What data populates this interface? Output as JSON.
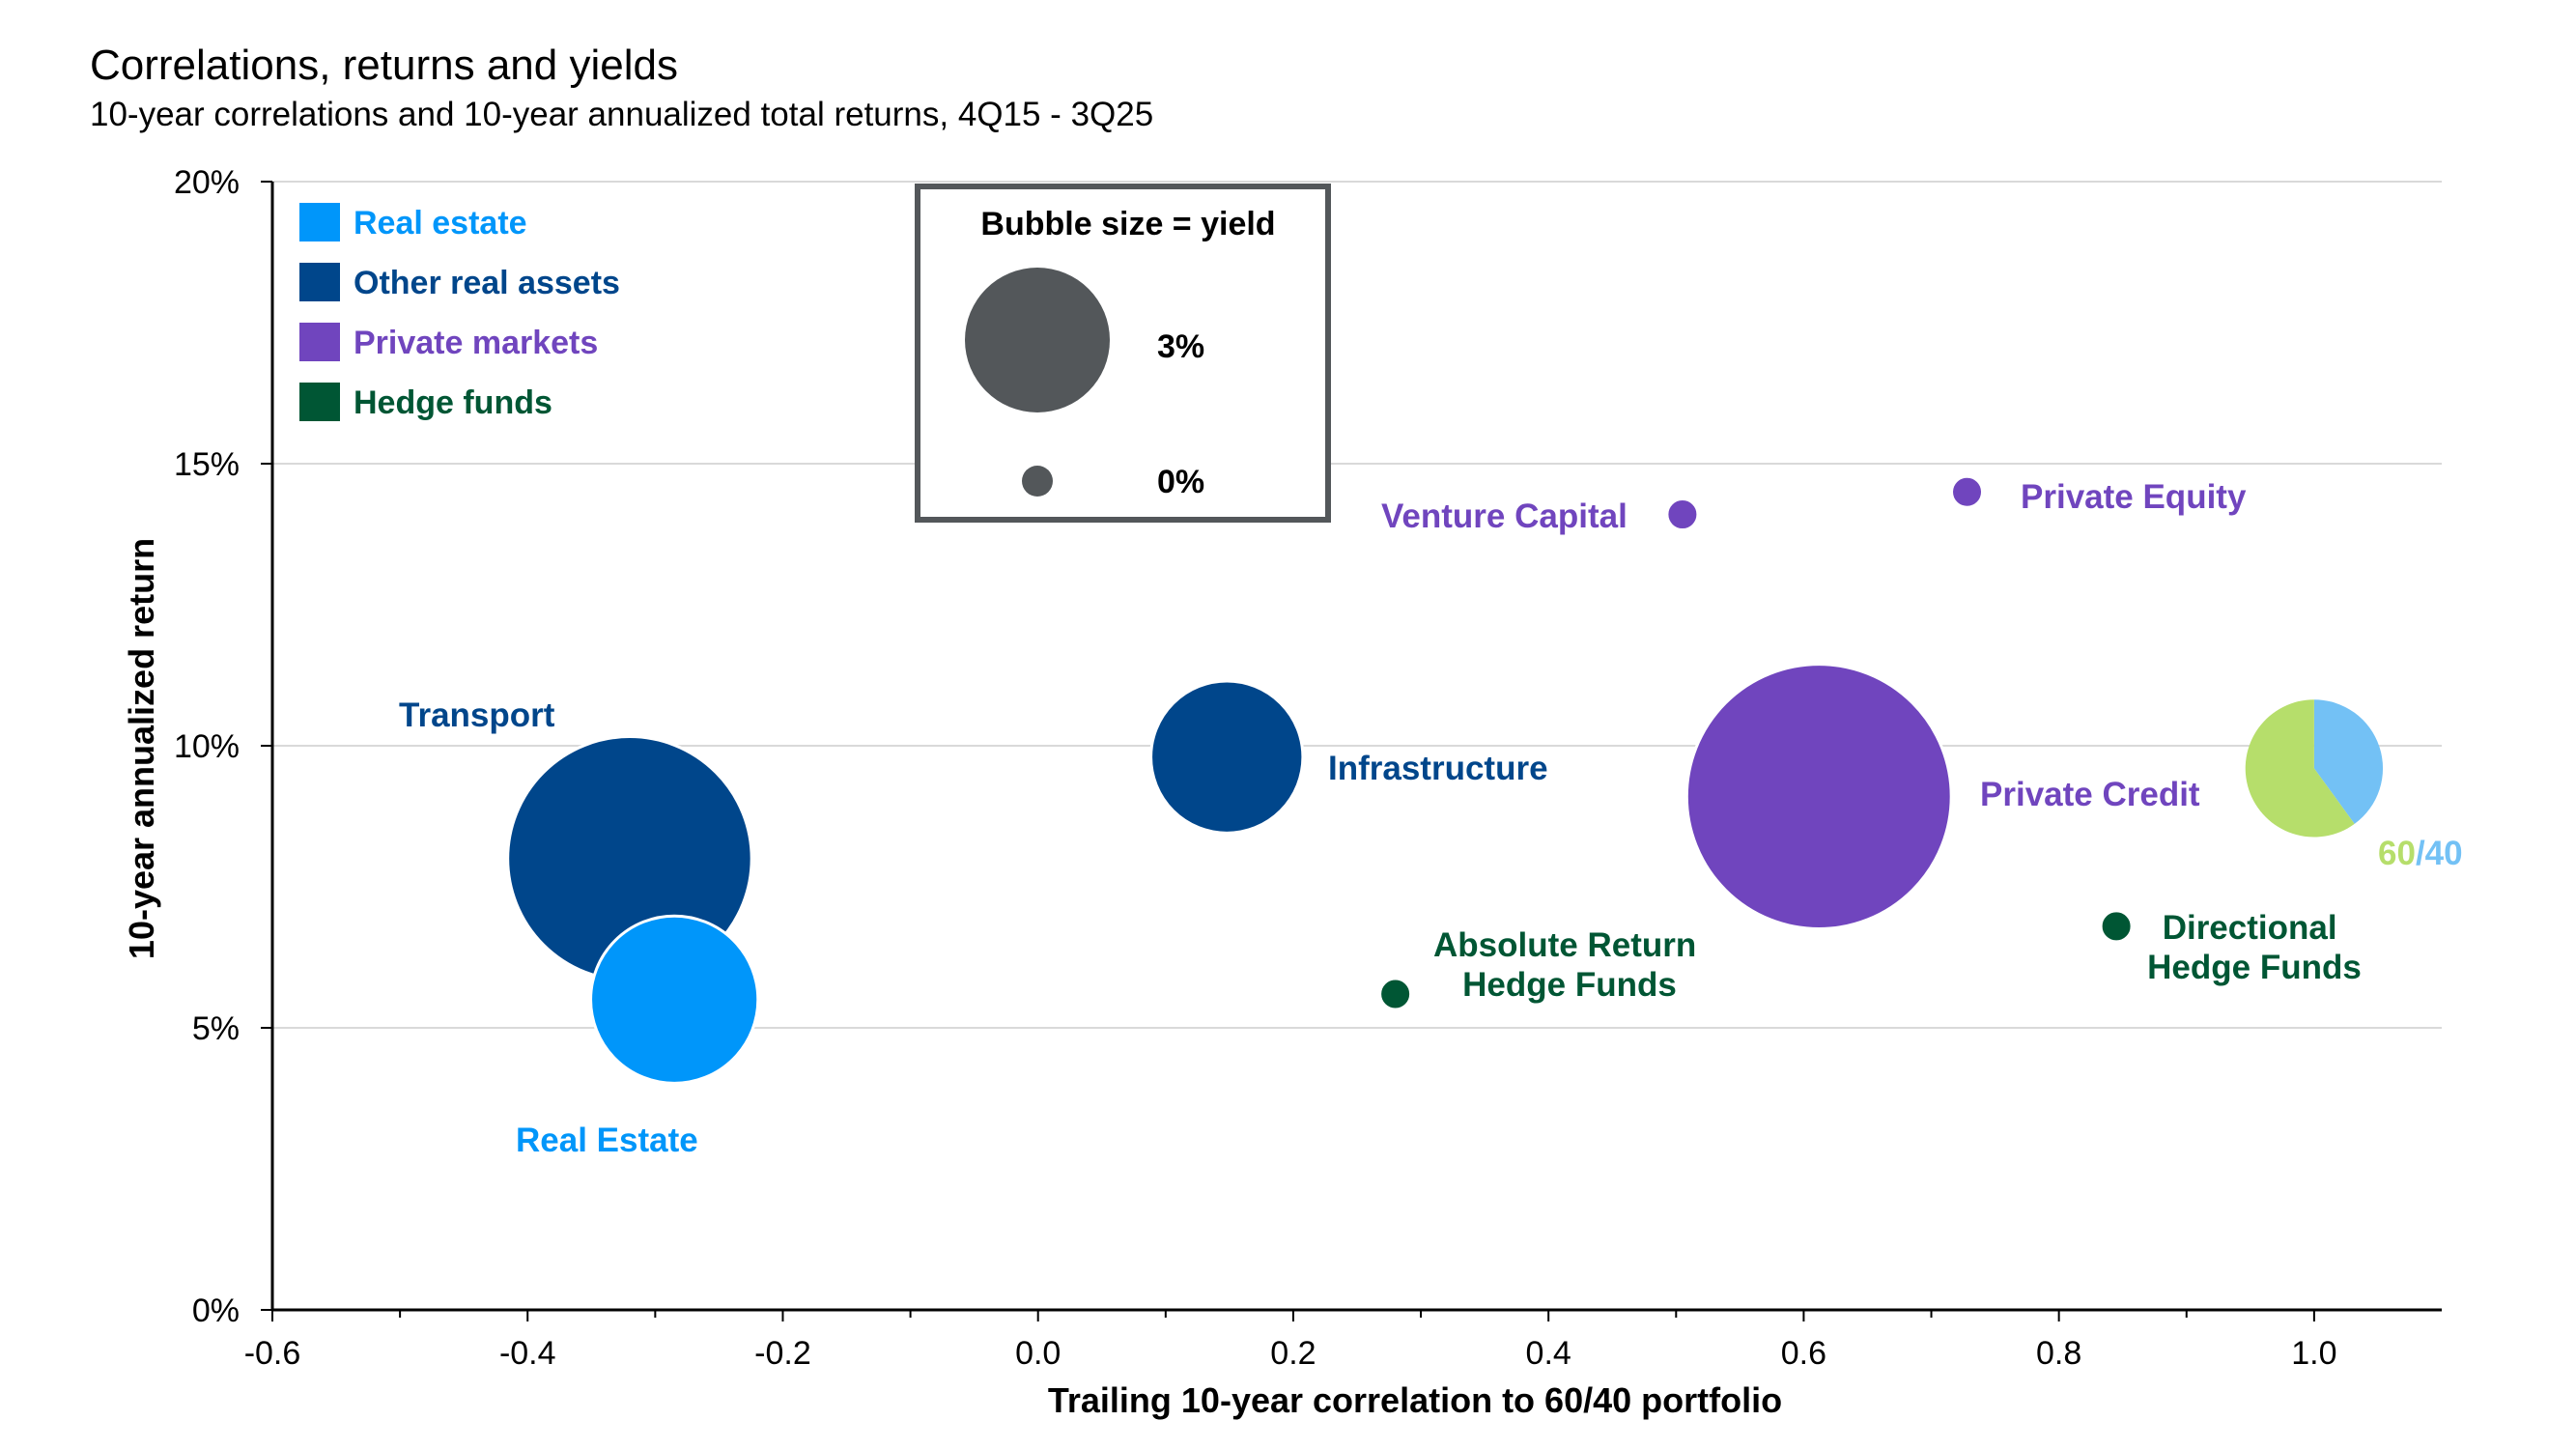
{
  "chart_data": {
    "type": "bubble",
    "title": "Correlations, returns and yields",
    "subtitle": "10-year correlations and 10-year annualized total returns, 4Q15 - 3Q25",
    "xlabel": "Trailing 10-year correlation to 60/40 portfolio",
    "ylabel": "10-year annualized return",
    "xlim": [
      -0.6,
      1.1
    ],
    "ylim": [
      0,
      20
    ],
    "x_ticks": [
      "-0.6",
      "-0.4",
      "-0.2",
      "0.0",
      "0.2",
      "0.4",
      "0.6",
      "0.8",
      "1.0"
    ],
    "x_tick_values": [
      -0.6,
      -0.4,
      -0.2,
      0.0,
      0.2,
      0.4,
      0.6,
      0.8,
      1.0
    ],
    "y_ticks": [
      "0%",
      "5%",
      "10%",
      "15%",
      "20%"
    ],
    "y_tick_values": [
      0,
      5,
      10,
      15,
      20
    ],
    "grid": "horizontal",
    "legend_position": "top-left",
    "legend": [
      {
        "label": "Real estate",
        "color": "#0096FA"
      },
      {
        "label": "Other real assets",
        "color": "#00468B"
      },
      {
        "label": "Private markets",
        "color": "#7045BE"
      },
      {
        "label": "Hedge funds",
        "color": "#005634"
      }
    ],
    "size_key": {
      "title": "Bubble size = yield",
      "entries": [
        {
          "label": "3%",
          "yield": 3
        },
        {
          "label": "0%",
          "yield": 0
        }
      ]
    },
    "series": [
      {
        "name": "Transport",
        "category": "Other real assets",
        "x": -0.32,
        "y": 8.0,
        "yield": 8.5
      },
      {
        "name": "Real Estate",
        "category": "Real estate",
        "x": -0.285,
        "y": 5.5,
        "yield": 4.0
      },
      {
        "name": "Infrastructure",
        "category": "Other real assets",
        "x": 0.148,
        "y": 9.8,
        "yield": 3.3
      },
      {
        "name": "Absolute Return Hedge Funds",
        "category": "Hedge funds",
        "x": 0.28,
        "y": 5.6,
        "yield": 0.05
      },
      {
        "name": "Venture Capital",
        "category": "Private markets",
        "x": 0.505,
        "y": 14.1,
        "yield": 0.05
      },
      {
        "name": "Private Credit",
        "category": "Private markets",
        "x": 0.612,
        "y": 9.1,
        "yield": 10.0
      },
      {
        "name": "Private Equity",
        "category": "Private markets",
        "x": 0.728,
        "y": 14.5,
        "yield": 0.05
      },
      {
        "name": "Directional Hedge Funds",
        "category": "Hedge funds",
        "x": 0.845,
        "y": 6.8,
        "yield": 0.05
      },
      {
        "name": "60/40",
        "category": "60/40 portfolio",
        "x": 1.0,
        "y": 9.6,
        "yield": 2.7,
        "pie": [
          60,
          40
        ]
      }
    ],
    "label_60_40": {
      "part1": "60",
      "sep": "/",
      "part2": "40"
    }
  },
  "colors": {
    "real_estate": "#0096FA",
    "other_real_assets": "#00468B",
    "private_markets": "#7045BE",
    "hedge_funds": "#005634",
    "key_bubble": "#53575A",
    "stock_green": "#B6DE6B",
    "bond_blue": "#73C1F5"
  }
}
